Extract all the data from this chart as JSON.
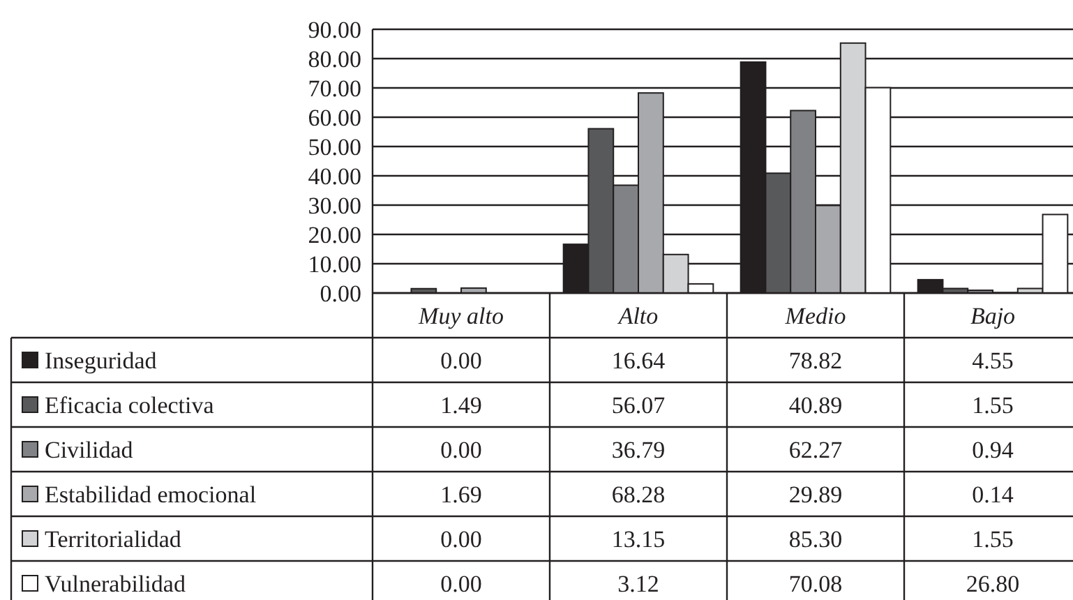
{
  "chart_data": {
    "type": "bar",
    "categories": [
      "Muy alto",
      "Alto",
      "Medio",
      "Bajo"
    ],
    "series": [
      {
        "name": "Inseguridad",
        "color": "#231f20",
        "values": [
          0,
          16.64,
          78.82,
          4.55
        ],
        "value_labels": [
          "0.00",
          "16.64",
          "78.82",
          "4.55"
        ]
      },
      {
        "name": "Eficacia colectiva",
        "color": "#58595b",
        "values": [
          1.49,
          56.07,
          40.89,
          1.55
        ],
        "value_labels": [
          "1.49",
          "56.07",
          "40.89",
          "1.55"
        ]
      },
      {
        "name": "Civilidad",
        "color": "#808285",
        "values": [
          0,
          36.79,
          62.27,
          0.94
        ],
        "value_labels": [
          "0.00",
          "36.79",
          "62.27",
          "0.94"
        ]
      },
      {
        "name": "Estabilidad emocional",
        "color": "#a7a9ac",
        "values": [
          1.69,
          68.28,
          29.89,
          0.14
        ],
        "value_labels": [
          "1.69",
          "68.28",
          "29.89",
          "0.14"
        ]
      },
      {
        "name": "Territorialidad",
        "color": "#d1d3d4",
        "values": [
          0,
          13.15,
          85.3,
          1.55
        ],
        "value_labels": [
          "0.00",
          "13.15",
          "85.30",
          "1.55"
        ]
      },
      {
        "name": "Vulnerabilidad",
        "color": "#ffffff",
        "values": [
          0,
          3.12,
          70.08,
          26.8
        ],
        "value_labels": [
          "0.00",
          "3.12",
          "70.08",
          "26.80"
        ]
      }
    ],
    "ylim": [
      0,
      90
    ],
    "yticks": [
      {
        "value": 0,
        "label": "0.00"
      },
      {
        "value": 10,
        "label": "10.00"
      },
      {
        "value": 20,
        "label": "20.00"
      },
      {
        "value": 30,
        "label": "30.00"
      },
      {
        "value": 40,
        "label": "40.00"
      },
      {
        "value": 50,
        "label": "50.00"
      },
      {
        "value": 60,
        "label": "60.00"
      },
      {
        "value": 70,
        "label": "70.00"
      },
      {
        "value": 80,
        "label": "80.00"
      },
      {
        "value": 90,
        "label": "90.00"
      }
    ],
    "grid": "y",
    "legend": "bottom"
  }
}
